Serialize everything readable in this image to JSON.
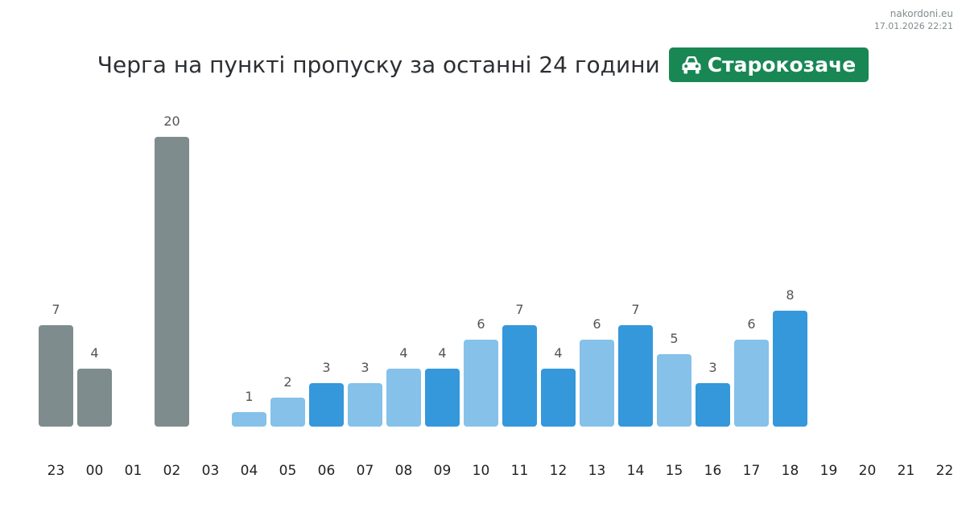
{
  "meta": {
    "site": "nakordoni.eu",
    "timestamp": "17.01.2026 22:21"
  },
  "header": {
    "title": "Черга на пункті пропуску за останні 24 години",
    "checkpoint": "Старокозаче",
    "checkpoint_icon": "car-icon"
  },
  "colors": {
    "past": "#7f8c8d",
    "light_blue": "#85c1e9",
    "dark_blue": "#3498db",
    "badge": "#198754",
    "label": "#555555",
    "axis_label": "#222222"
  },
  "chart_data": {
    "type": "bar",
    "title": "Черга на пункті пропуску за останні 24 години",
    "xlabel": "",
    "ylabel": "",
    "ylim": [
      0,
      20
    ],
    "grid": false,
    "categories": [
      "23",
      "00",
      "01",
      "02",
      "03",
      "04",
      "05",
      "06",
      "07",
      "08",
      "09",
      "10",
      "11",
      "12",
      "13",
      "14",
      "15",
      "16",
      "17",
      "18",
      "19",
      "20",
      "21",
      "22"
    ],
    "values": [
      7,
      4,
      null,
      20,
      null,
      1,
      2,
      3,
      3,
      4,
      4,
      6,
      7,
      4,
      6,
      7,
      5,
      3,
      6,
      8,
      null,
      null,
      null,
      null
    ],
    "bar_colors": [
      "past",
      "past",
      "past",
      "past",
      "past",
      "light_blue",
      "light_blue",
      "dark_blue",
      "light_blue",
      "light_blue",
      "dark_blue",
      "light_blue",
      "dark_blue",
      "dark_blue",
      "light_blue",
      "dark_blue",
      "light_blue",
      "dark_blue",
      "light_blue",
      "dark_blue",
      "dark_blue",
      "dark_blue",
      "dark_blue",
      "dark_blue"
    ]
  }
}
